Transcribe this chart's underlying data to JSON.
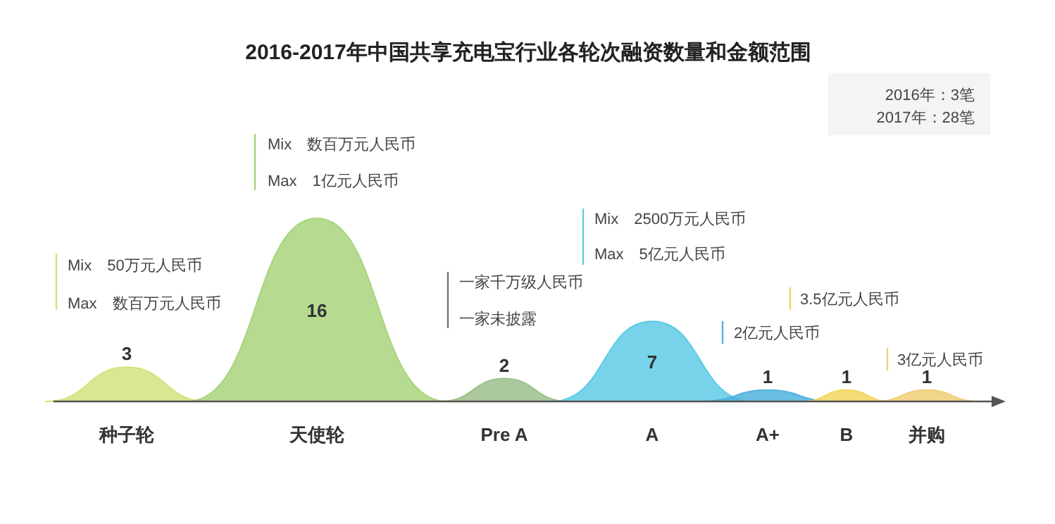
{
  "chart_data": {
    "type": "other",
    "title": "2016-2017年中国共享充电宝行业各轮次融资数量和金额范围",
    "categories": [
      "种子轮",
      "天使轮",
      "Pre A",
      "A",
      "A+",
      "B",
      "并购"
    ],
    "values": [
      3,
      16,
      2,
      7,
      1,
      1,
      1
    ],
    "colors": [
      "#d4e27e",
      "#a9d47c",
      "#9cc08c",
      "#5fcbe6",
      "#4fb3dd",
      "#f3d65e",
      "#f0cf78"
    ],
    "data_labels": true,
    "annotations": [
      "Mix　50万元人民币",
      "Max　数百万元人民币",
      "Mix　数百万元人民币",
      "Max　1亿元人民币",
      "一家千万级人民币",
      "一家未披露",
      "Mix　2500万元人民币",
      "Max　5亿元人民币",
      "2亿元人民币",
      "3.5亿元人民币",
      "3亿元人民币",
      "2016年：3笔",
      "2017年：28笔"
    ]
  }
}
